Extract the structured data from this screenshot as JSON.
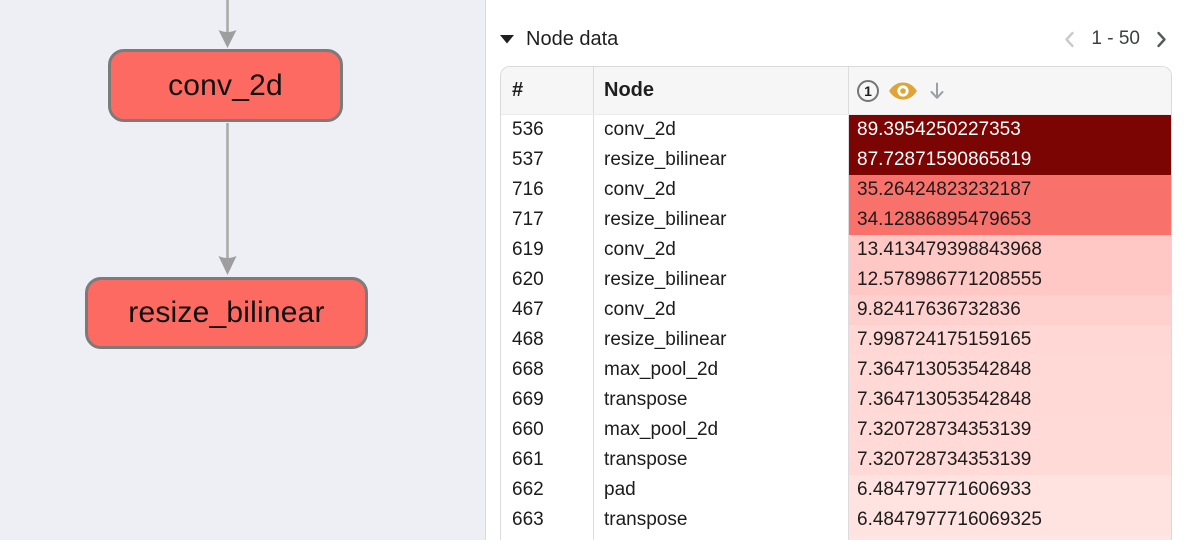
{
  "graph": {
    "nodes": [
      {
        "label": "conv_2d"
      },
      {
        "label": "resize_bilinear"
      }
    ],
    "colors": {
      "node_fill": "#fc6a62",
      "node_border": "#7b7b7b",
      "edge": "#ababab",
      "arrowhead": "#9e9e9e",
      "background": "#edeff4"
    }
  },
  "node_data_panel": {
    "title": "Node data",
    "pagination": {
      "range_label": "1 - 50"
    },
    "table": {
      "col_index_header": "#",
      "col_node_header": "Node",
      "value_col": {
        "badge_label": "1",
        "icons": [
          "eye-icon",
          "arrow-down-icon"
        ],
        "eye_color": "#e0a436"
      },
      "rows": [
        {
          "index": "536",
          "node": "conv_2d",
          "value": "89.3954250227353",
          "bg": "#7a0503",
          "fg": "#ffffff"
        },
        {
          "index": "537",
          "node": "resize_bilinear",
          "value": "87.72871590865819",
          "bg": "#7a0503",
          "fg": "#ffffff"
        },
        {
          "index": "716",
          "node": "conv_2d",
          "value": "35.26424823232187",
          "bg": "#f9716b",
          "fg": "#1c1c1c"
        },
        {
          "index": "717",
          "node": "resize_bilinear",
          "value": "34.12886895479653",
          "bg": "#f9716b",
          "fg": "#1c1c1c"
        },
        {
          "index": "619",
          "node": "conv_2d",
          "value": "13.413479398843968",
          "bg": "#ffc8c5",
          "fg": "#1c1c1c"
        },
        {
          "index": "620",
          "node": "resize_bilinear",
          "value": "12.578986771208555",
          "bg": "#ffc8c5",
          "fg": "#1c1c1c"
        },
        {
          "index": "467",
          "node": "conv_2d",
          "value": "9.82417636732836",
          "bg": "#ffd1ce",
          "fg": "#1c1c1c"
        },
        {
          "index": "468",
          "node": "resize_bilinear",
          "value": "7.998724175159165",
          "bg": "#ffd8d5",
          "fg": "#1c1c1c"
        },
        {
          "index": "668",
          "node": "max_pool_2d",
          "value": "7.364713053542848",
          "bg": "#ffd9d6",
          "fg": "#1c1c1c"
        },
        {
          "index": "669",
          "node": "transpose",
          "value": "7.364713053542848",
          "bg": "#ffd9d6",
          "fg": "#1c1c1c"
        },
        {
          "index": "660",
          "node": "max_pool_2d",
          "value": "7.320728734353139",
          "bg": "#ffdad7",
          "fg": "#1c1c1c"
        },
        {
          "index": "661",
          "node": "transpose",
          "value": "7.320728734353139",
          "bg": "#ffdad7",
          "fg": "#1c1c1c"
        },
        {
          "index": "662",
          "node": "pad",
          "value": "6.484797771606933",
          "bg": "#ffe3e1",
          "fg": "#1c1c1c"
        },
        {
          "index": "663",
          "node": "transpose",
          "value": "6.4847977716069325",
          "bg": "#ffe3e1",
          "fg": "#1c1c1c"
        }
      ],
      "partial_row_bg": "#ffe5e3"
    }
  }
}
